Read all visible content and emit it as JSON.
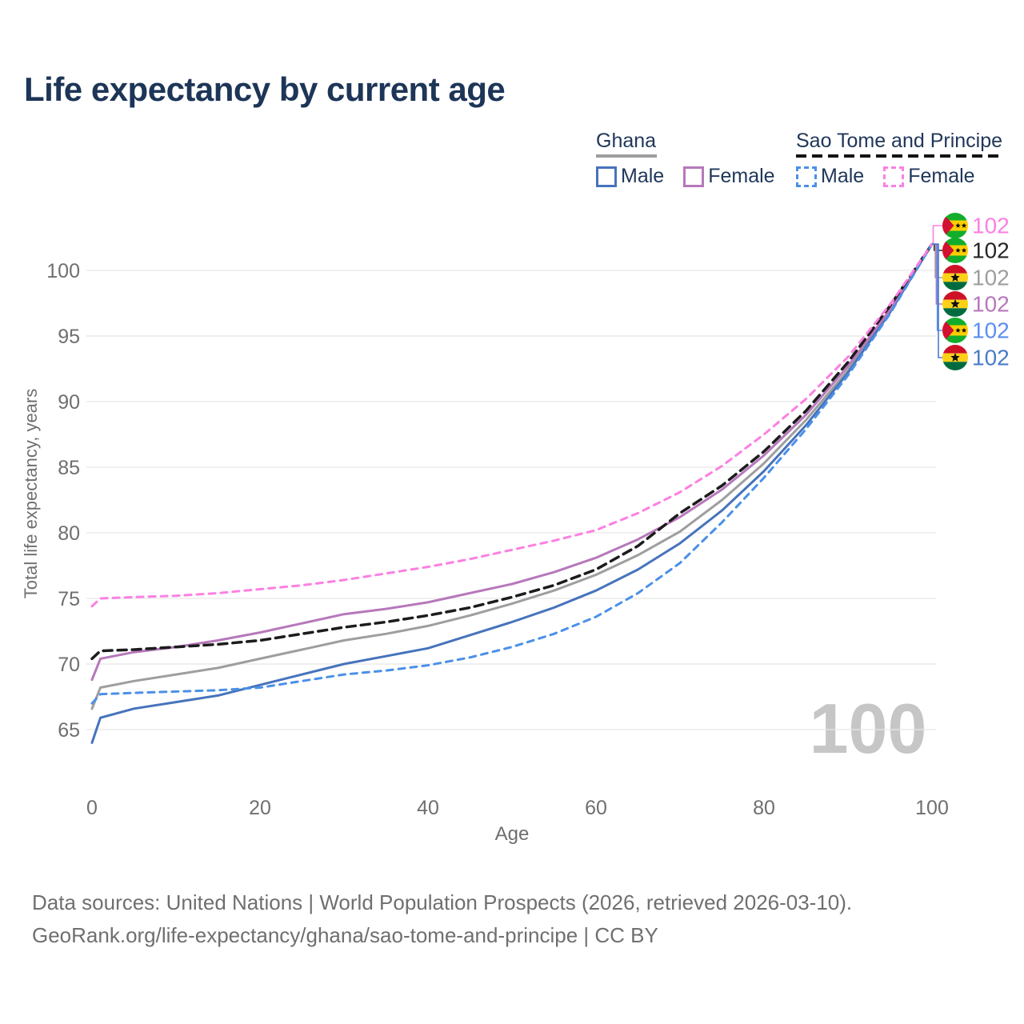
{
  "title": "Life expectancy by current age",
  "legend": {
    "groups": [
      {
        "name": "Ghana",
        "underline_color": "#9e9e9e",
        "underline_style": "solid",
        "items": [
          {
            "label": "Male",
            "color": "#4673bc",
            "dash": false
          },
          {
            "label": "Female",
            "color": "#b778bb",
            "dash": false
          }
        ]
      },
      {
        "name": "Sao Tome and Principe",
        "underline_color": "#141414",
        "underline_style": "dashed",
        "items": [
          {
            "label": "Male",
            "color": "#4a90e8",
            "dash": true
          },
          {
            "label": "Female",
            "color": "#fb80e2",
            "dash": true
          }
        ]
      }
    ]
  },
  "watermark": "100",
  "chart_data": {
    "type": "line",
    "title": "Life expectancy by current age",
    "xlabel": "Age",
    "ylabel": "Total life expectancy, years",
    "xlim": [
      0,
      100
    ],
    "ylim": [
      63,
      103
    ],
    "x_ticks": [
      0,
      20,
      40,
      60,
      80,
      100
    ],
    "y_ticks": [
      65,
      70,
      75,
      80,
      85,
      90,
      95,
      100
    ],
    "grid": "horizontal",
    "legend_position": "top-right",
    "x": [
      0,
      1,
      5,
      10,
      15,
      20,
      25,
      30,
      35,
      40,
      45,
      50,
      55,
      60,
      65,
      70,
      75,
      80,
      85,
      90,
      95,
      100
    ],
    "series": [
      {
        "name": "Ghana Both sexes",
        "country": "Ghana",
        "color": "#9e9e9e",
        "dashed": false,
        "width": 3,
        "values": [
          66.6,
          68.2,
          68.7,
          69.2,
          69.7,
          70.4,
          71.1,
          71.8,
          72.3,
          72.9,
          73.7,
          74.6,
          75.6,
          76.8,
          78.3,
          80.1,
          82.5,
          85.3,
          88.6,
          92.4,
          96.9,
          102
        ]
      },
      {
        "name": "Ghana Male",
        "country": "Ghana",
        "color": "#4673bc",
        "dashed": false,
        "width": 3,
        "values": [
          64.0,
          65.9,
          66.6,
          67.1,
          67.6,
          68.4,
          69.2,
          70.0,
          70.6,
          71.2,
          72.2,
          73.2,
          74.3,
          75.6,
          77.2,
          79.2,
          81.7,
          84.7,
          88.2,
          92.2,
          96.8,
          102
        ]
      },
      {
        "name": "Ghana Female",
        "country": "Ghana",
        "color": "#b778bb",
        "dashed": false,
        "width": 3,
        "values": [
          68.8,
          70.4,
          70.9,
          71.3,
          71.8,
          72.4,
          73.1,
          73.8,
          74.2,
          74.7,
          75.4,
          76.1,
          77.0,
          78.1,
          79.5,
          81.2,
          83.3,
          85.9,
          89.0,
          92.7,
          97.0,
          102
        ]
      },
      {
        "name": "Sao Tome and Principe Both sexes",
        "country": "Sao Tome and Principe",
        "color": "#1c1c1c",
        "dashed": true,
        "width": 3.5,
        "values": [
          70.4,
          71.0,
          71.1,
          71.3,
          71.5,
          71.8,
          72.3,
          72.8,
          73.2,
          73.7,
          74.3,
          75.1,
          76.0,
          77.2,
          79.0,
          81.5,
          83.6,
          86.2,
          89.3,
          93.0,
          97.3,
          102
        ]
      },
      {
        "name": "Sao Tome and Principe Male",
        "country": "Sao Tome and Principe",
        "color": "#4a90e8",
        "dashed": true,
        "width": 3,
        "values": [
          67.0,
          67.7,
          67.8,
          67.9,
          68.0,
          68.2,
          68.7,
          69.2,
          69.5,
          69.9,
          70.5,
          71.3,
          72.3,
          73.6,
          75.4,
          77.7,
          80.8,
          84.2,
          87.9,
          92.0,
          96.7,
          102
        ]
      },
      {
        "name": "Sao Tome and Principe Female",
        "country": "Sao Tome and Principe",
        "color": "#fb80e2",
        "dashed": true,
        "width": 3,
        "values": [
          74.4,
          75.0,
          75.1,
          75.2,
          75.4,
          75.7,
          76.0,
          76.4,
          76.9,
          77.4,
          78.0,
          78.7,
          79.4,
          80.2,
          81.5,
          83.1,
          85.1,
          87.5,
          90.2,
          93.4,
          97.4,
          102
        ]
      }
    ]
  },
  "end_labels": [
    {
      "flag": "sao-tome-and-principe",
      "series": "Sao Tome and Principe Female",
      "value": "102",
      "color": "#fb80e2"
    },
    {
      "flag": "sao-tome-and-principe",
      "series": "Sao Tome and Principe Both sexes",
      "value": "102",
      "color": "#262626"
    },
    {
      "flag": "ghana",
      "series": "Ghana Both sexes",
      "value": "102",
      "color": "#9e9e9e"
    },
    {
      "flag": "ghana",
      "series": "Ghana Female",
      "value": "102",
      "color": "#b778bb"
    },
    {
      "flag": "sao-tome-and-principe",
      "series": "Sao Tome and Principe Male",
      "value": "102",
      "color": "#5b8ff0"
    },
    {
      "flag": "ghana",
      "series": "Ghana Male",
      "value": "102",
      "color": "#4a7cc9"
    }
  ],
  "footer": {
    "line1": "Data sources: United Nations | World Population Prospects (2026, retrieved 2026-03-10).",
    "line2": "GeoRank.org/life-expectancy/ghana/sao-tome-and-principe | CC BY"
  }
}
